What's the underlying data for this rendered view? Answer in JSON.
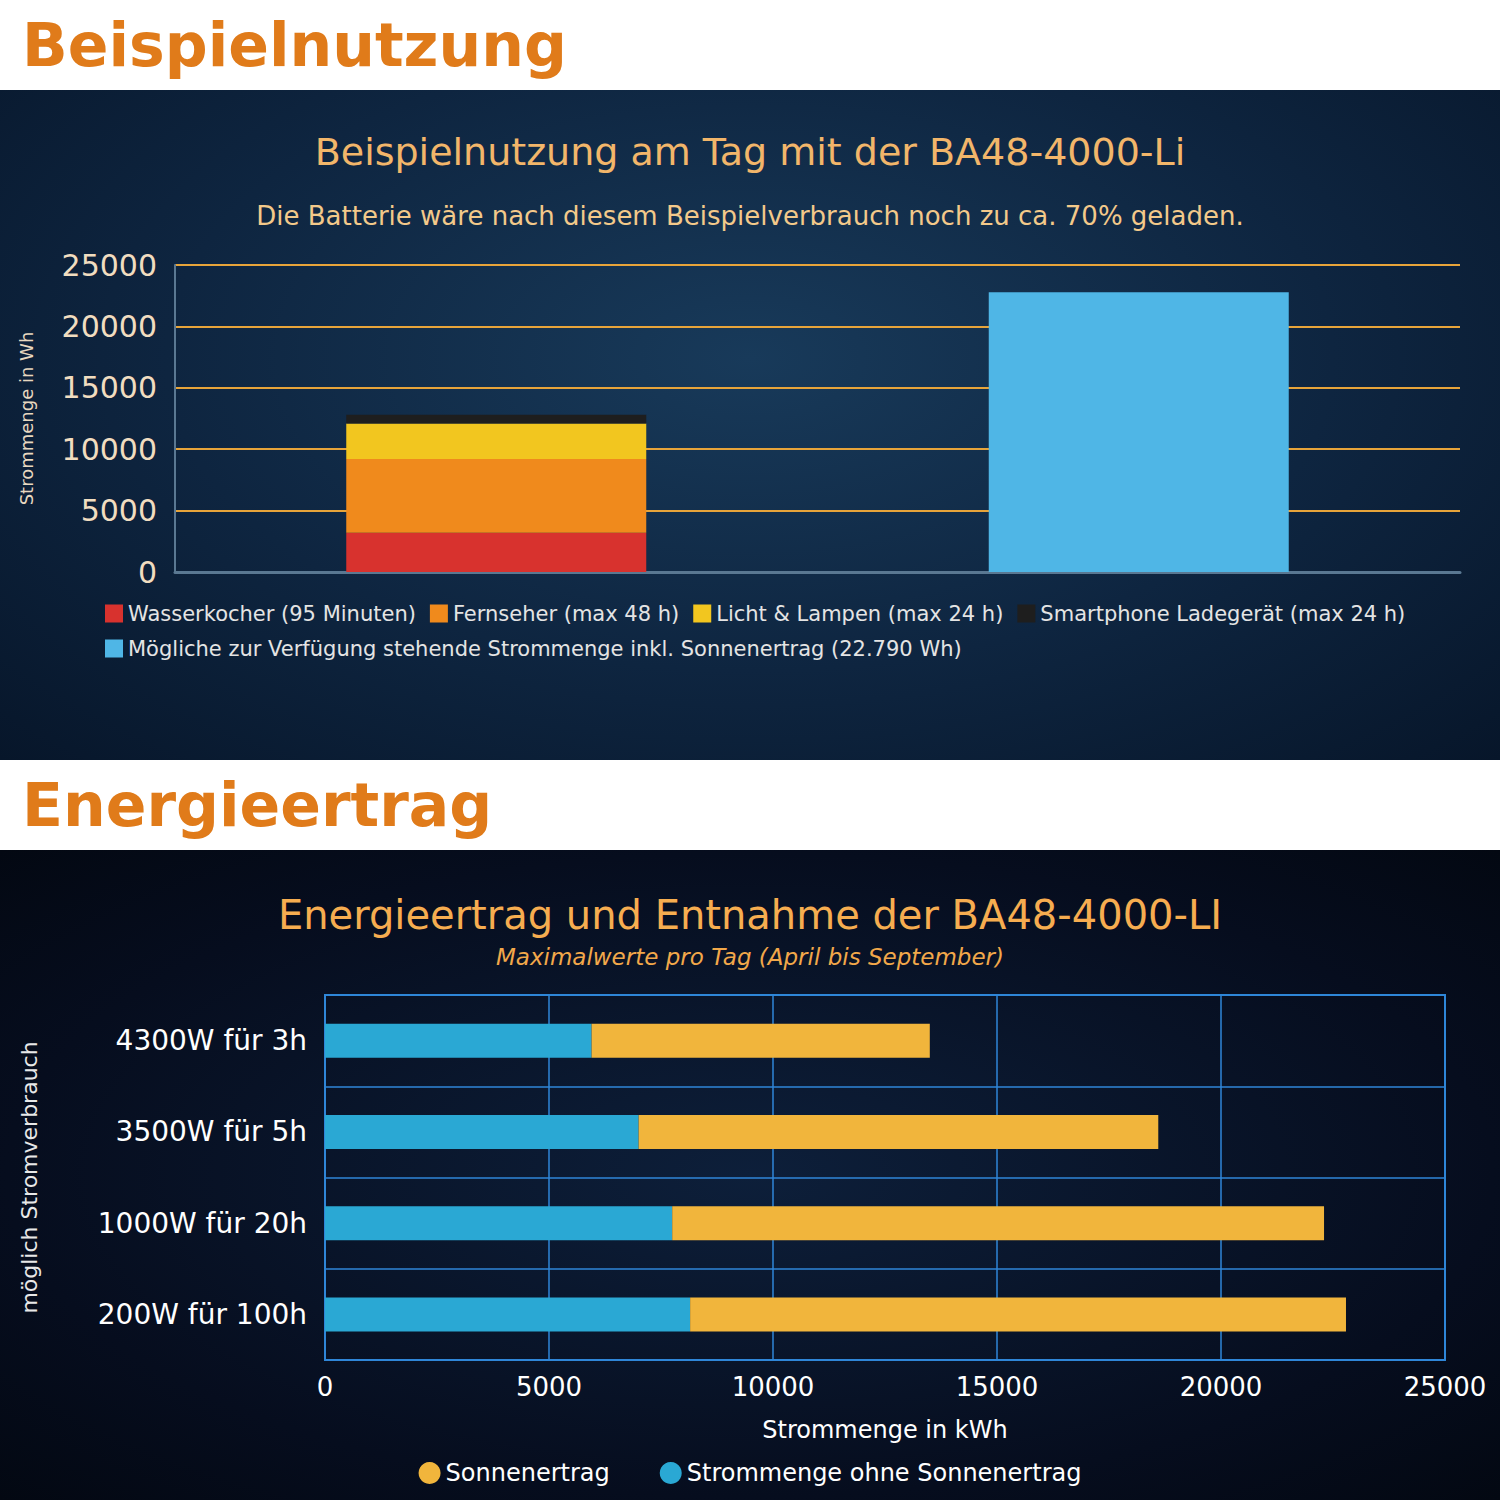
{
  "headings": [
    "Beispielnutzung",
    "Energieertrag"
  ],
  "chart_data": [
    {
      "type": "bar",
      "title": "Beispielnutzung am Tag mit der BA48-4000-Li",
      "subtitle": "Die Batterie wäre nach diesem Beispielverbrauch noch zu ca. 70% geladen.",
      "ylabel": "Strommenge in Wh",
      "categories": [
        null,
        null
      ],
      "series": [
        {
          "name": "Wasserkocher (95 Minuten)",
          "color": "#d8322e",
          "values": [
            3200,
            null
          ]
        },
        {
          "name": "Fernseher (max 48 h)",
          "color": "#f08a1c",
          "values": [
            6000,
            null
          ]
        },
        {
          "name": "Licht & Lampen (max 24 h)",
          "color": "#f2c61f",
          "values": [
            2900,
            null
          ]
        },
        {
          "name": "Smartphone Ladegerät (max 24 h)",
          "color": "#1e1e1e",
          "values": [
            700,
            null
          ]
        },
        {
          "name": "Mögliche zur Verfügung stehende Strommenge inkl. Sonnenertrag (22.790 Wh)",
          "color": "#4fb6e6",
          "values": [
            null,
            22790
          ]
        }
      ],
      "ylim": [
        0,
        25000
      ],
      "yticks": [
        0,
        5000,
        10000,
        15000,
        20000,
        25000
      ],
      "stacked": true,
      "grid": true,
      "legend": "bottom",
      "tick_labels": "y"
    },
    {
      "type": "bar",
      "orientation": "horizontal",
      "title": "Energieertrag und Entnahme der BA48-4000-LI",
      "subtitle": "Maximalwerte pro Tag (April bis September)",
      "xlabel": "Strommenge in kWh",
      "ylabel": "möglich Stromverbrauch",
      "categories": [
        "4300W für 3h",
        "3500W für 5h",
        "1000W für 20h",
        "200W für 100h"
      ],
      "series": [
        {
          "name": "Strommenge ohne Sonnenertrag",
          "color": "#2aa8d4",
          "values": [
            5950,
            7000,
            7750,
            8150
          ]
        },
        {
          "name": "Sonnenertrag",
          "color": "#f1b53c",
          "values": [
            7550,
            11600,
            14550,
            14640
          ]
        }
      ],
      "xlim": [
        0,
        25000
      ],
      "xticks": [
        0,
        5000,
        10000,
        15000,
        20000,
        25000
      ],
      "stacked": true,
      "grid": true,
      "legend": "bottom"
    }
  ]
}
